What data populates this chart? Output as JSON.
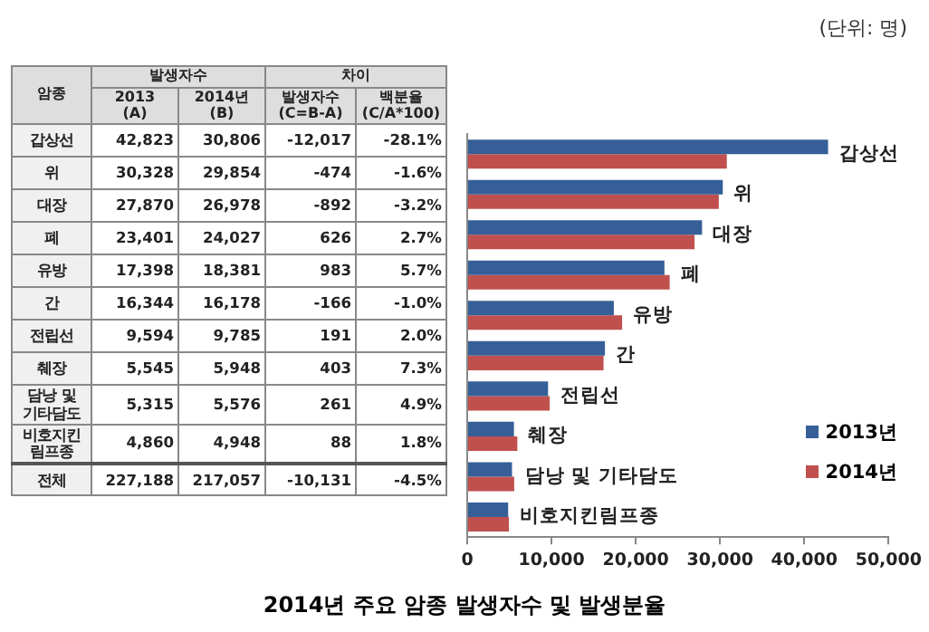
{
  "chart_data": [
    {
      "type": "other",
      "ylabel": "암종",
      "annotations": [
        "발생자수",
        "차이"
      ],
      "categories": [
        "2013\n(A)",
        "2014년\n(B)",
        "발생자수\n(C=B-A)",
        "백분율\n(C/A*100)"
      ],
      "y_categories": [
        "갑상선",
        "위",
        "대장",
        "폐",
        "유방",
        "간",
        "전립선",
        "췌장",
        "담낭 및 기타담도",
        "비호지킨림프종",
        "전체"
      ],
      "cell_labels": [
        [
          "42,823",
          "30,806",
          "-12,017",
          "-28.1%"
        ],
        [
          "30,328",
          "29,854",
          "-474",
          "-1.6%"
        ],
        [
          "27,870",
          "26,978",
          "-892",
          "-3.2%"
        ],
        [
          "23,401",
          "24,027",
          "626",
          "2.7%"
        ],
        [
          "17,398",
          "18,381",
          "983",
          "5.7%"
        ],
        [
          "16,344",
          "16,178",
          "-166",
          "-1.0%"
        ],
        [
          "9,594",
          "9,785",
          "191",
          "2.0%"
        ],
        [
          "5,545",
          "5,948",
          "403",
          "7.3%"
        ],
        [
          "5,315",
          "5,576",
          "261",
          "4.9%"
        ],
        [
          "4,860",
          "4,948",
          "88",
          "1.8%"
        ],
        [
          "227,188",
          "217,057",
          "-10,131",
          "-4.5%"
        ]
      ]
    },
    {
      "type": "bar",
      "orientation": "horizontal",
      "title": "2014년 주요 암종 발생자수 및 발생분율",
      "annotations": [
        "(단위: 명)"
      ],
      "categories": [
        "갑상선",
        "위",
        "대장",
        "폐",
        "유방",
        "간",
        "전립선",
        "췌장",
        "담낭 및 기타담도",
        "비호지킨림프종"
      ],
      "series": [
        {
          "name": "2013년",
          "color": "#365f98",
          "values": [
            42823,
            30328,
            27870,
            23401,
            17398,
            16344,
            9594,
            5545,
            5315,
            4860
          ]
        },
        {
          "name": "2014년",
          "color": "#c0504d",
          "values": [
            30806,
            29854,
            26978,
            24027,
            18381,
            16178,
            9785,
            5948,
            5576,
            4948
          ]
        }
      ],
      "xlim": [
        0,
        50000
      ],
      "xticks": [
        0,
        {
          "value": 10000,
          "label": "10,000"
        },
        {
          "value": 20000,
          "label": "20,000"
        },
        {
          "value": 30000,
          "label": "30,000"
        },
        {
          "value": 40000,
          "label": "40,000"
        },
        {
          "value": 50000,
          "label": "50,000"
        }
      ],
      "grid": false,
      "legend": "bottom right"
    }
  ]
}
